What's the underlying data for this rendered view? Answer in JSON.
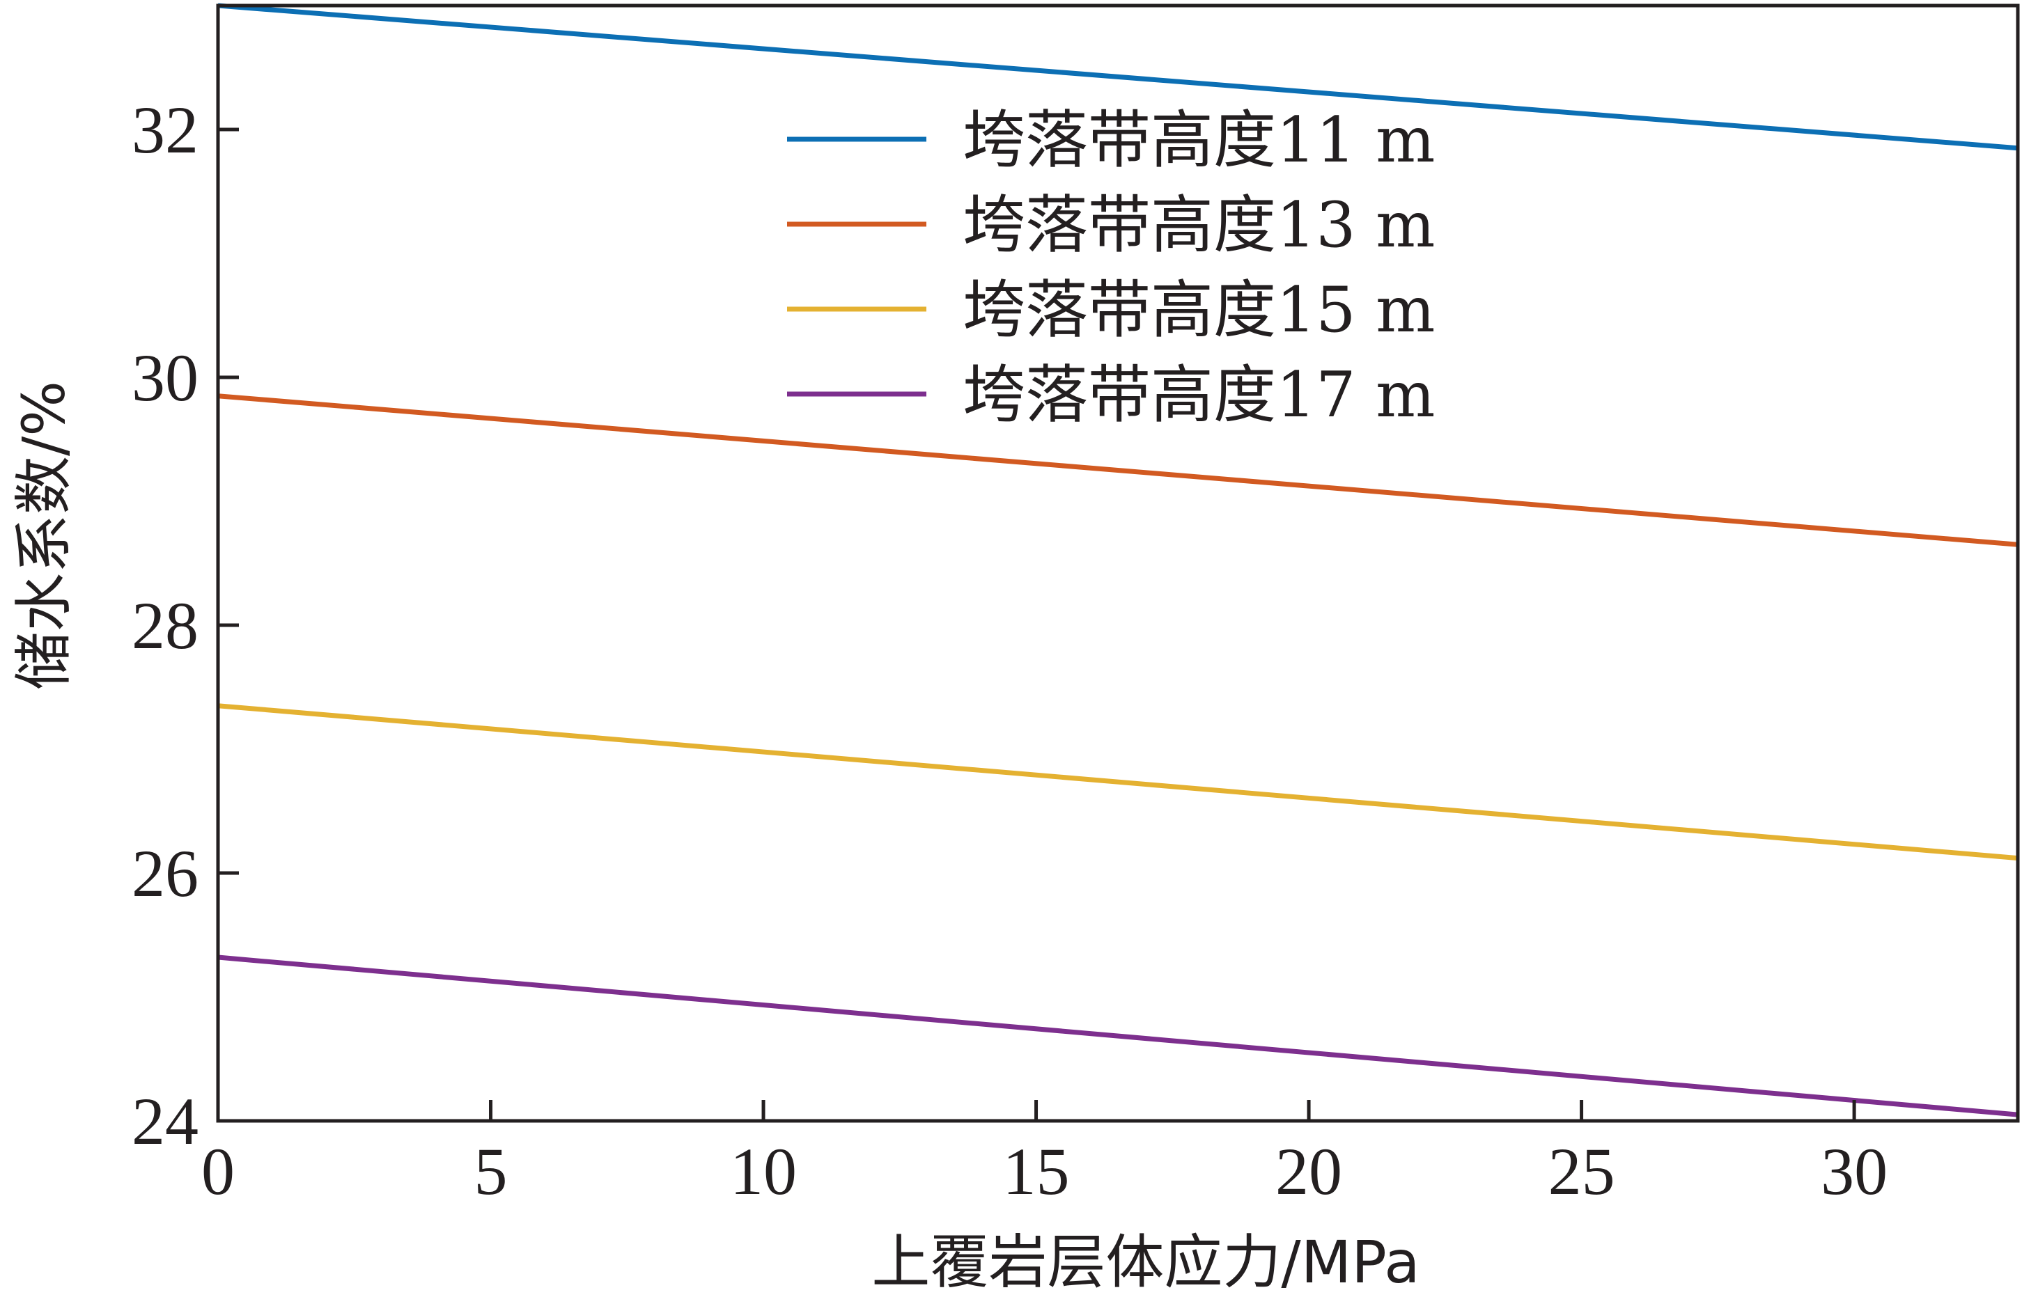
{
  "chart_data": {
    "type": "line",
    "title": "",
    "xlabel": "上覆岩层体应力/MPa",
    "ylabel": "储水系数/%",
    "xlim": [
      0,
      33
    ],
    "ylim": [
      24,
      33
    ],
    "xticks": [
      0,
      5,
      10,
      15,
      20,
      25,
      30
    ],
    "yticks": [
      24,
      26,
      28,
      30,
      32
    ],
    "grid": false,
    "legend_position": "top-right",
    "series": [
      {
        "name": "垮落带高度11 m",
        "color": "#0c6fb4",
        "x": [
          0,
          33
        ],
        "values": [
          33.0,
          31.85
        ]
      },
      {
        "name": "垮落带高度13 m",
        "color": "#d25a21",
        "x": [
          0,
          33
        ],
        "values": [
          29.85,
          28.65
        ]
      },
      {
        "name": "垮落带高度15 m",
        "color": "#e4b131",
        "x": [
          0,
          33
        ],
        "values": [
          27.35,
          26.12
        ]
      },
      {
        "name": "垮落带高度17 m",
        "color": "#7d2f8e",
        "x": [
          0,
          33
        ],
        "values": [
          25.32,
          24.05
        ]
      }
    ]
  }
}
